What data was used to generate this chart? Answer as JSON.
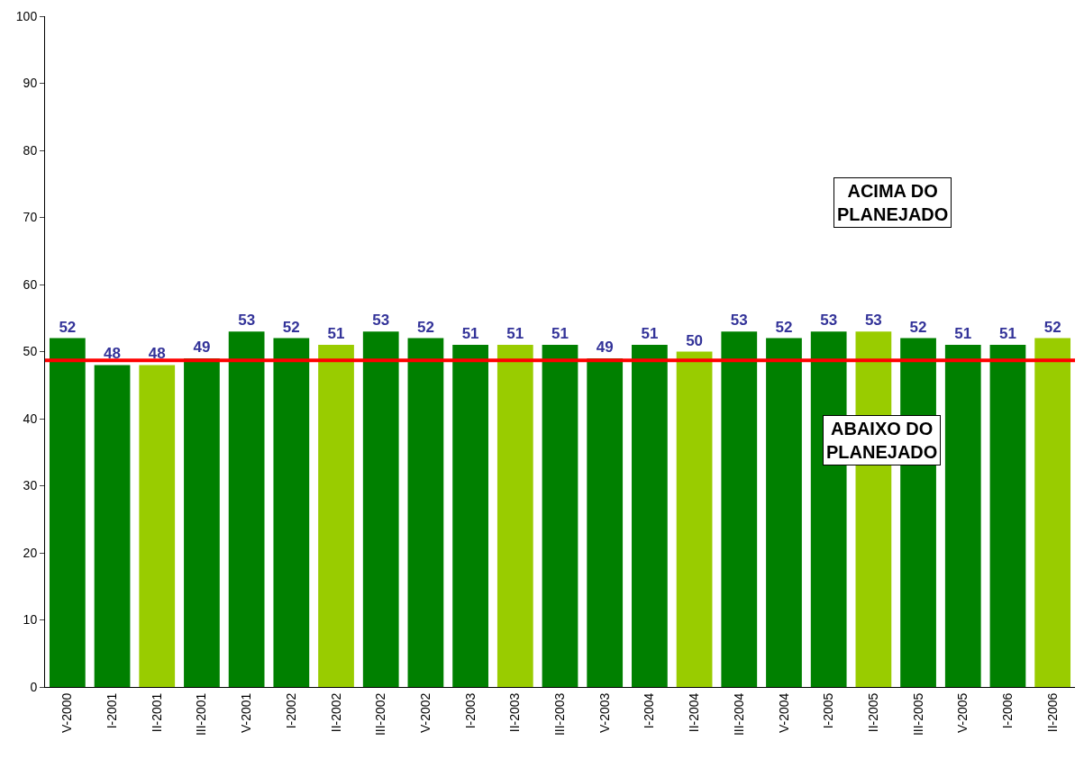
{
  "chart_data": {
    "type": "bar",
    "categories": [
      "V-2000",
      "I-2001",
      "II-2001",
      "III-2001",
      "V-2001",
      "I-2002",
      "II-2002",
      "III-2002",
      "V-2002",
      "I-2003",
      "II-2003",
      "III-2003",
      "V-2003",
      "I-2004",
      "II-2004",
      "III-2004",
      "V-2004",
      "I-2005",
      "II-2005",
      "III-2005",
      "V-2005",
      "I-2006",
      "II-2006"
    ],
    "values": [
      52,
      48,
      48,
      49,
      53,
      52,
      51,
      53,
      52,
      51,
      51,
      51,
      49,
      51,
      50,
      53,
      52,
      53,
      53,
      52,
      51,
      51,
      52
    ],
    "colors": [
      "#008000",
      "#008000",
      "#99cc00",
      "#008000",
      "#008000",
      "#008000",
      "#99cc00",
      "#008000",
      "#008000",
      "#008000",
      "#99cc00",
      "#008000",
      "#008000",
      "#008000",
      "#99cc00",
      "#008000",
      "#008000",
      "#008000",
      "#99cc00",
      "#008000",
      "#008000",
      "#008000",
      "#99cc00"
    ],
    "data_labels": true,
    "ylim": [
      0,
      100
    ],
    "yticks": [
      0,
      10,
      20,
      30,
      40,
      50,
      60,
      70,
      80,
      90,
      100
    ],
    "ref_lines": [
      {
        "axis": "y",
        "value": 48.7,
        "color": "#ff0000"
      }
    ],
    "annotations": [
      "ACIMA DO PLANEJADO",
      "ABAIXO DO PLANEJADO"
    ],
    "legend": false
  }
}
